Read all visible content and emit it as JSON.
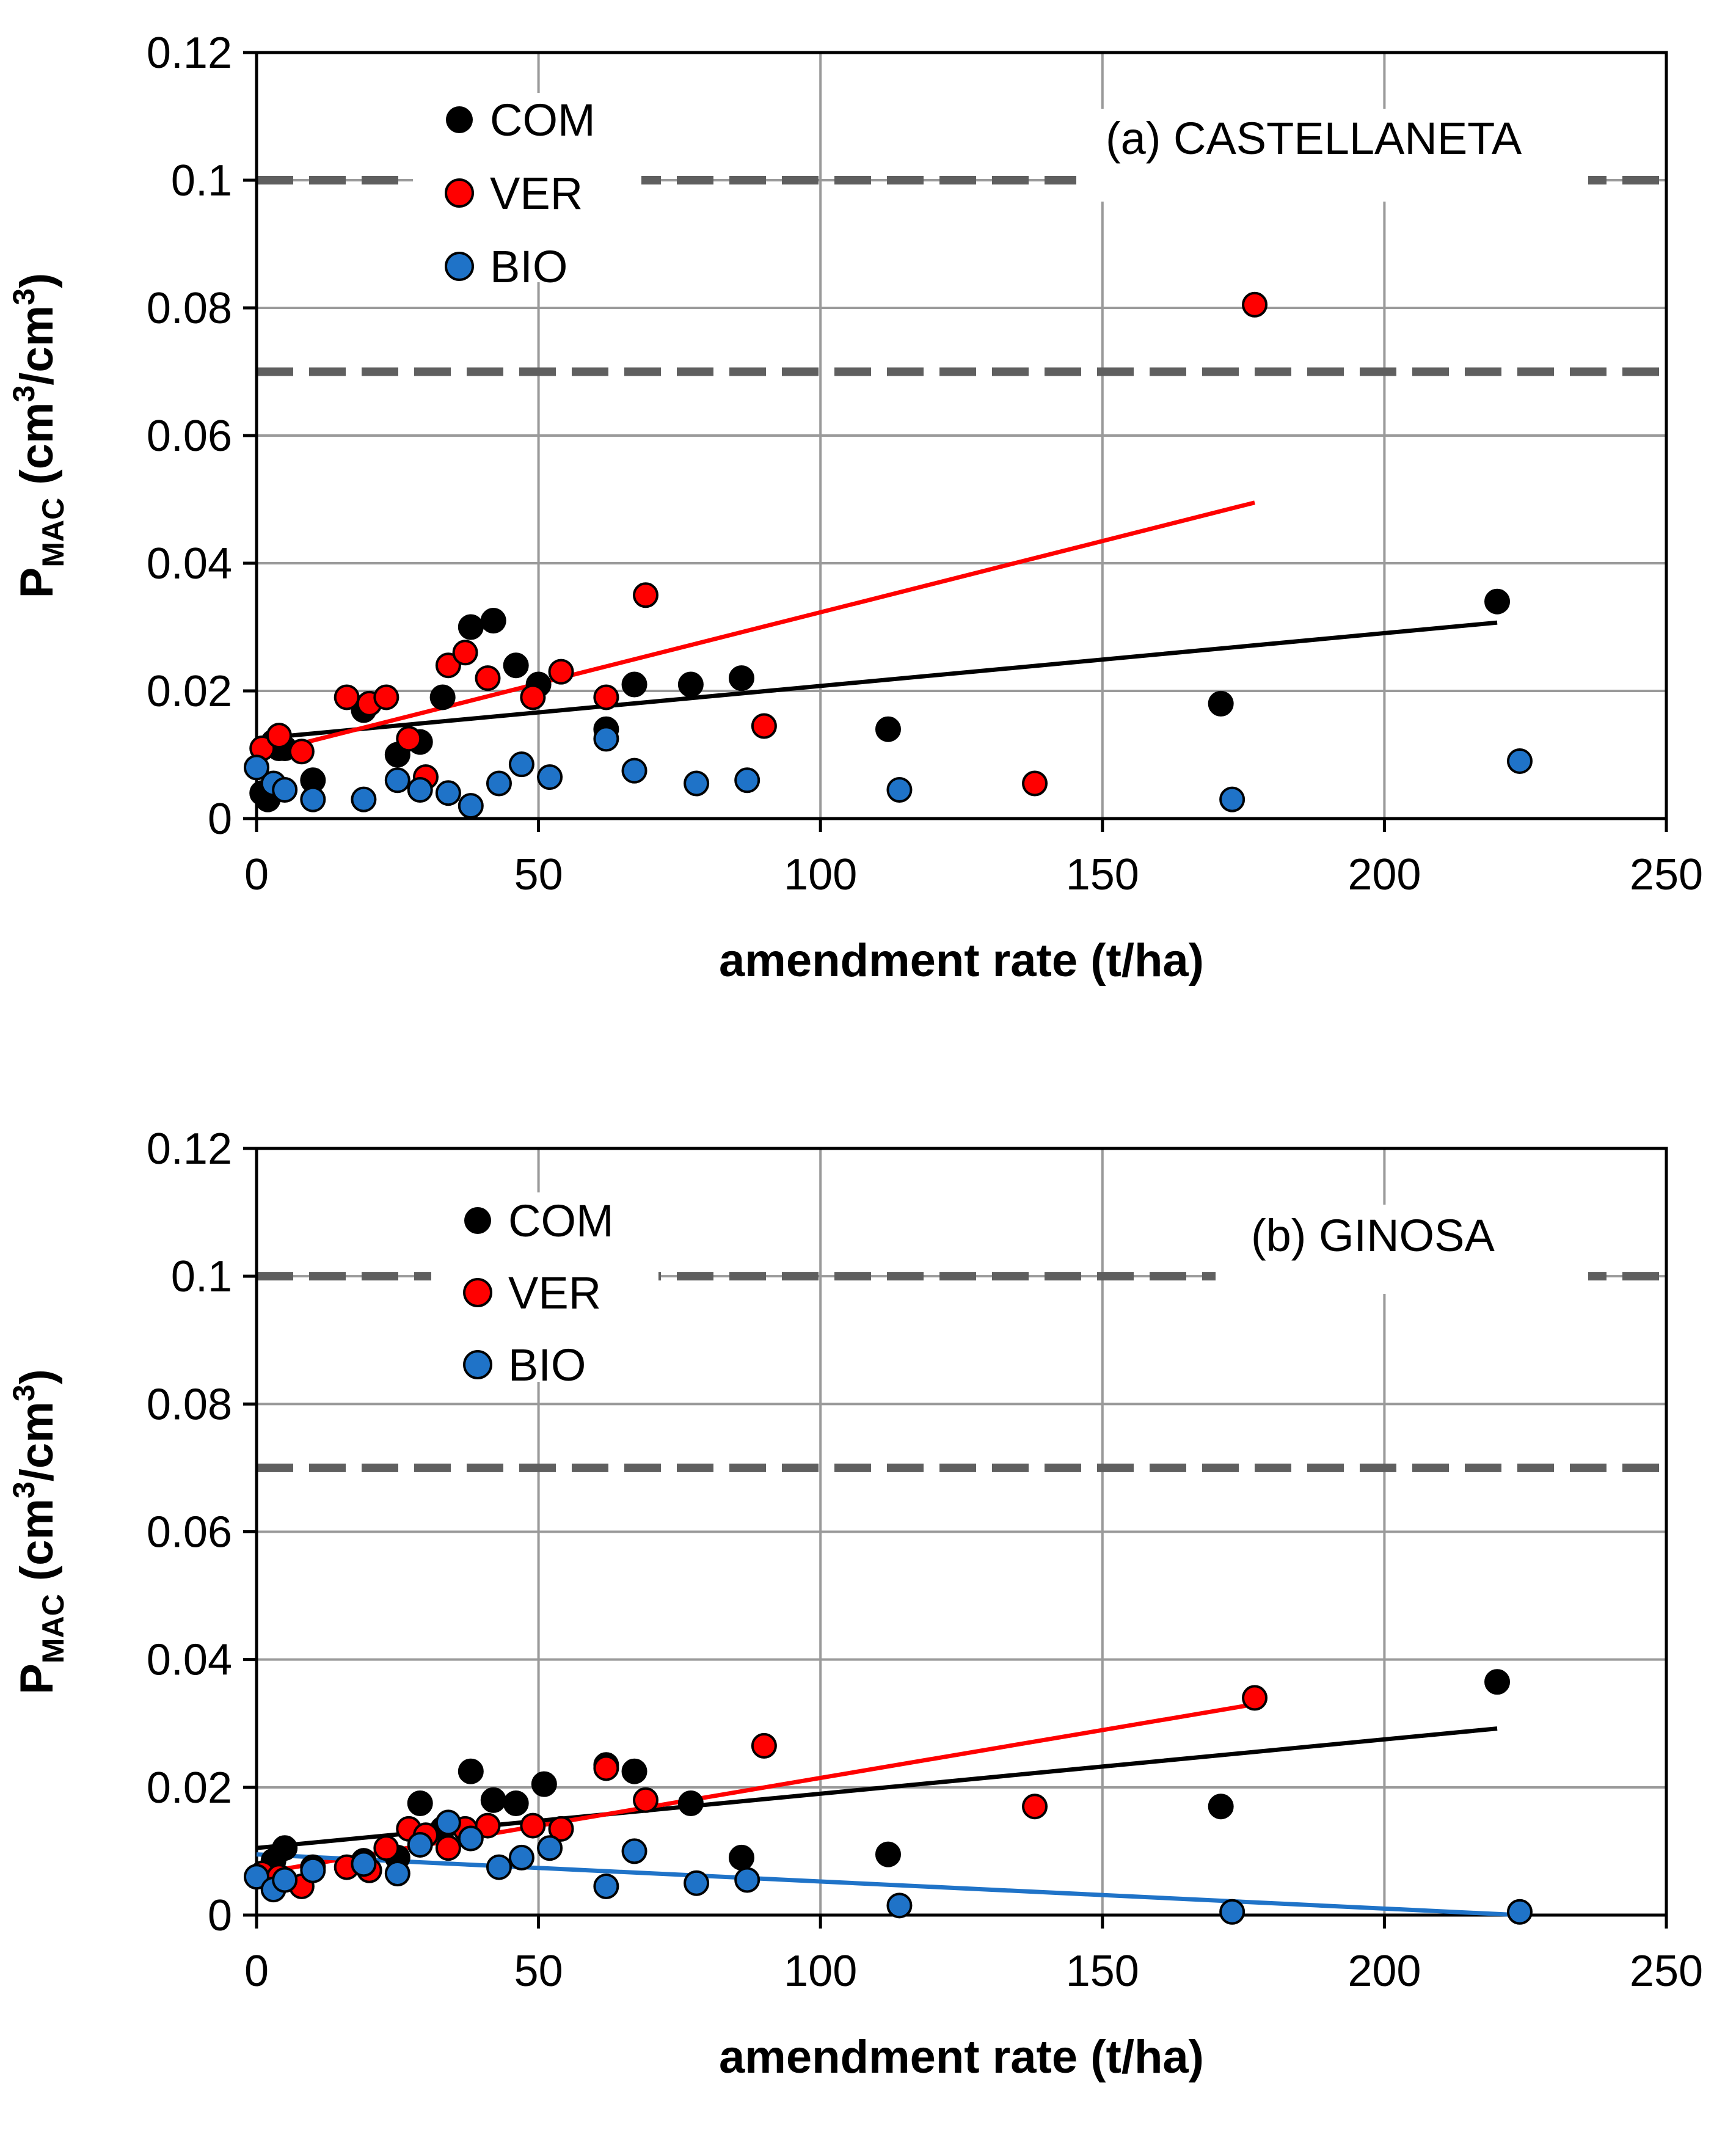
{
  "chart_data": [
    {
      "type": "scatter",
      "panel": "a",
      "annotation": "(a) CASTELLANETA",
      "xlabel": "amendment rate (t/ha)",
      "ylabel_main": "P",
      "ylabel_sub": "MAC",
      "ylabel_rest": " (cm",
      "ylabel_sup1": "3",
      "ylabel_mid": "/cm",
      "ylabel_sup2": "3",
      "ylabel_end": ")",
      "xlim": [
        0,
        250
      ],
      "ylim": [
        0,
        0.12
      ],
      "xticks": [
        "0",
        "50",
        "100",
        "150",
        "200",
        "250"
      ],
      "yticks": [
        "0",
        "0.02",
        "0.04",
        "0.06",
        "0.08",
        "0.1",
        "0.12"
      ],
      "grid": true,
      "reference_lines": [
        0.1,
        0.07
      ],
      "legend_position": "top-left",
      "series": [
        {
          "name": "COM",
          "color": "#000000",
          "points": [
            [
              1,
              0.004
            ],
            [
              2,
              0.003
            ],
            [
              3,
              0.012
            ],
            [
              4,
              0.011
            ],
            [
              5,
              0.011
            ],
            [
              10,
              0.006
            ],
            [
              19,
              0.017
            ],
            [
              25,
              0.01
            ],
            [
              29,
              0.012
            ],
            [
              33,
              0.019
            ],
            [
              38,
              0.03
            ],
            [
              42,
              0.031
            ],
            [
              46,
              0.024
            ],
            [
              50,
              0.021
            ],
            [
              62,
              0.014
            ],
            [
              67,
              0.021
            ],
            [
              77,
              0.021
            ],
            [
              86,
              0.022
            ],
            [
              112,
              0.014
            ],
            [
              171,
              0.018
            ],
            [
              220,
              0.034
            ]
          ],
          "trend": [
            [
              0,
              0.0125
            ],
            [
              220,
              0.0307
            ]
          ]
        },
        {
          "name": "VER",
          "color": "#ff0000",
          "points": [
            [
              1,
              0.011
            ],
            [
              4,
              0.013
            ],
            [
              8,
              0.0105
            ],
            [
              16,
              0.019
            ],
            [
              20,
              0.018
            ],
            [
              23,
              0.019
            ],
            [
              27,
              0.0125
            ],
            [
              30,
              0.0065
            ],
            [
              34,
              0.024
            ],
            [
              37,
              0.026
            ],
            [
              41,
              0.022
            ],
            [
              49,
              0.019
            ],
            [
              54,
              0.023
            ],
            [
              62,
              0.019
            ],
            [
              69,
              0.035
            ],
            [
              90,
              0.0145
            ],
            [
              138,
              0.0055
            ],
            [
              177,
              0.0805
            ]
          ],
          "trend": [
            [
              0,
              0.01
            ],
            [
              177,
              0.0495
            ]
          ]
        },
        {
          "name": "BIO",
          "color": "#1f73c8",
          "points": [
            [
              0,
              0.008
            ],
            [
              3,
              0.0055
            ],
            [
              5,
              0.0045
            ],
            [
              10,
              0.003
            ],
            [
              19,
              0.003
            ],
            [
              25,
              0.006
            ],
            [
              29,
              0.0045
            ],
            [
              34,
              0.004
            ],
            [
              38,
              0.002
            ],
            [
              43,
              0.0055
            ],
            [
              47,
              0.0085
            ],
            [
              52,
              0.0065
            ],
            [
              62,
              0.0125
            ],
            [
              67,
              0.0075
            ],
            [
              78,
              0.0055
            ],
            [
              87,
              0.006
            ],
            [
              114,
              0.0045
            ],
            [
              173,
              0.003
            ],
            [
              224,
              0.009
            ]
          ],
          "trend": null
        }
      ]
    },
    {
      "type": "scatter",
      "panel": "b",
      "annotation": "(b) GINOSA",
      "xlabel": "amendment rate (t/ha)",
      "ylabel_main": "P",
      "ylabel_sub": "MAC",
      "ylabel_rest": " (cm",
      "ylabel_sup1": "3",
      "ylabel_mid": "/cm",
      "ylabel_sup2": "3",
      "ylabel_end": ")",
      "xlim": [
        0,
        250
      ],
      "ylim": [
        0,
        0.12
      ],
      "xticks": [
        "0",
        "50",
        "100",
        "150",
        "200",
        "250"
      ],
      "yticks": [
        "0",
        "0.02",
        "0.04",
        "0.06",
        "0.08",
        "0.1",
        "0.12"
      ],
      "grid": true,
      "reference_lines": [
        0.1,
        0.07
      ],
      "legend_position": "top-left",
      "series": [
        {
          "name": "COM",
          "color": "#000000",
          "points": [
            [
              3,
              0.0085
            ],
            [
              5,
              0.0105
            ],
            [
              10,
              0.0075
            ],
            [
              19,
              0.0085
            ],
            [
              25,
              0.009
            ],
            [
              29,
              0.0175
            ],
            [
              33,
              0.0135
            ],
            [
              38,
              0.0225
            ],
            [
              42,
              0.018
            ],
            [
              46,
              0.0175
            ],
            [
              51,
              0.0205
            ],
            [
              62,
              0.0235
            ],
            [
              67,
              0.0225
            ],
            [
              77,
              0.0175
            ],
            [
              86,
              0.009
            ],
            [
              112,
              0.0095
            ],
            [
              171,
              0.017
            ],
            [
              220,
              0.0365
            ]
          ],
          "trend": [
            [
              0,
              0.0105
            ],
            [
              220,
              0.0292
            ]
          ]
        },
        {
          "name": "VER",
          "color": "#ff0000",
          "points": [
            [
              1,
              0.0065
            ],
            [
              4,
              0.006
            ],
            [
              8,
              0.0045
            ],
            [
              16,
              0.0075
            ],
            [
              20,
              0.007
            ],
            [
              23,
              0.0105
            ],
            [
              27,
              0.0135
            ],
            [
              30,
              0.0125
            ],
            [
              34,
              0.0105
            ],
            [
              37,
              0.0135
            ],
            [
              41,
              0.014
            ],
            [
              49,
              0.014
            ],
            [
              54,
              0.0135
            ],
            [
              62,
              0.023
            ],
            [
              69,
              0.018
            ],
            [
              90,
              0.0265
            ],
            [
              138,
              0.017
            ],
            [
              177,
              0.034
            ]
          ],
          "trend": [
            [
              0,
              0.0065
            ],
            [
              177,
              0.033
            ]
          ]
        },
        {
          "name": "BIO",
          "color": "#1f73c8",
          "points": [
            [
              0,
              0.006
            ],
            [
              3,
              0.004
            ],
            [
              5,
              0.0055
            ],
            [
              10,
              0.007
            ],
            [
              19,
              0.008
            ],
            [
              25,
              0.0065
            ],
            [
              29,
              0.011
            ],
            [
              34,
              0.0145
            ],
            [
              38,
              0.012
            ],
            [
              43,
              0.0075
            ],
            [
              47,
              0.009
            ],
            [
              52,
              0.0105
            ],
            [
              62,
              0.0045
            ],
            [
              67,
              0.01
            ],
            [
              78,
              0.005
            ],
            [
              87,
              0.0055
            ],
            [
              114,
              0.0015
            ],
            [
              173,
              0.0005
            ],
            [
              224,
              0.0005
            ]
          ],
          "trend": [
            [
              0,
              0.0095
            ],
            [
              224,
              0.0
            ]
          ]
        }
      ]
    }
  ]
}
